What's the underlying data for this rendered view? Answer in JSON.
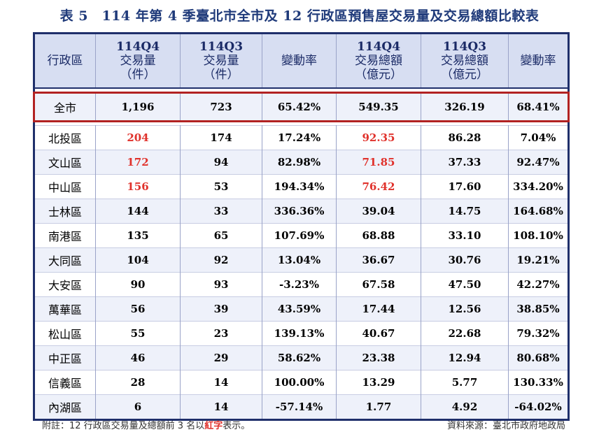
{
  "title": "表 5　114 年第 4 季臺北市全市及 12 行政區預售屋交易量及交易總額比較表",
  "header": {
    "district": "行政區",
    "col1": [
      "114Q4",
      "交易量",
      "（件）"
    ],
    "col2": [
      "114Q3",
      "交易量",
      "（件）"
    ],
    "col3": "變動率",
    "col4": [
      "114Q4",
      "交易總額",
      "（億元）"
    ],
    "col5": [
      "114Q3",
      "交易總額",
      "（億元）"
    ],
    "col6": "變動率"
  },
  "total": {
    "district": "全市",
    "vol_q4": "1,196",
    "vol_q3": "723",
    "vol_change": "65.42%",
    "amt_q4": "549.35",
    "amt_q3": "326.19",
    "amt_change": "68.41%"
  },
  "rows": [
    {
      "district": "北投區",
      "vol_q4": "204",
      "vol_q3": "174",
      "vol_change": "17.24%",
      "amt_q4": "92.35",
      "amt_q3": "86.28",
      "amt_change": "7.04%",
      "vol_top": true,
      "amt_top": true
    },
    {
      "district": "文山區",
      "vol_q4": "172",
      "vol_q3": "94",
      "vol_change": "82.98%",
      "amt_q4": "71.85",
      "amt_q3": "37.33",
      "amt_change": "92.47%",
      "vol_top": true,
      "amt_top": true
    },
    {
      "district": "中山區",
      "vol_q4": "156",
      "vol_q3": "53",
      "vol_change": "194.34%",
      "amt_q4": "76.42",
      "amt_q3": "17.60",
      "amt_change": "334.20%",
      "vol_top": true,
      "amt_top": true
    },
    {
      "district": "士林區",
      "vol_q4": "144",
      "vol_q3": "33",
      "vol_change": "336.36%",
      "amt_q4": "39.04",
      "amt_q3": "14.75",
      "amt_change": "164.68%"
    },
    {
      "district": "南港區",
      "vol_q4": "135",
      "vol_q3": "65",
      "vol_change": "107.69%",
      "amt_q4": "68.88",
      "amt_q3": "33.10",
      "amt_change": "108.10%"
    },
    {
      "district": "大同區",
      "vol_q4": "104",
      "vol_q3": "92",
      "vol_change": "13.04%",
      "amt_q4": "36.67",
      "amt_q3": "30.76",
      "amt_change": "19.21%"
    },
    {
      "district": "大安區",
      "vol_q4": "90",
      "vol_q3": "93",
      "vol_change": "-3.23%",
      "amt_q4": "67.58",
      "amt_q3": "47.50",
      "amt_change": "42.27%"
    },
    {
      "district": "萬華區",
      "vol_q4": "56",
      "vol_q3": "39",
      "vol_change": "43.59%",
      "amt_q4": "17.44",
      "amt_q3": "12.56",
      "amt_change": "38.85%"
    },
    {
      "district": "松山區",
      "vol_q4": "55",
      "vol_q3": "23",
      "vol_change": "139.13%",
      "amt_q4": "40.67",
      "amt_q3": "22.68",
      "amt_change": "79.32%"
    },
    {
      "district": "中正區",
      "vol_q4": "46",
      "vol_q3": "29",
      "vol_change": "58.62%",
      "amt_q4": "23.38",
      "amt_q3": "12.94",
      "amt_change": "80.68%"
    },
    {
      "district": "信義區",
      "vol_q4": "28",
      "vol_q3": "14",
      "vol_change": "100.00%",
      "amt_q4": "13.29",
      "amt_q3": "5.77",
      "amt_change": "130.33%"
    },
    {
      "district": "內湖區",
      "vol_q4": "6",
      "vol_q3": "14",
      "vol_change": "-57.14%",
      "amt_q4": "1.77",
      "amt_q3": "4.92",
      "amt_change": "-64.02%"
    }
  ],
  "footer": {
    "note_prefix": "附註：12 行政區交易量及總額前 3 名以",
    "note_red": "紅字",
    "note_suffix": "表示。",
    "source": "資料來源：臺北市政府地政局"
  },
  "colors": {
    "title": "#1f3a7a",
    "header_bg": "#d7def2",
    "border": "#1f2f6b",
    "total_outline": "#b22222",
    "highlight": "#e0322c"
  }
}
